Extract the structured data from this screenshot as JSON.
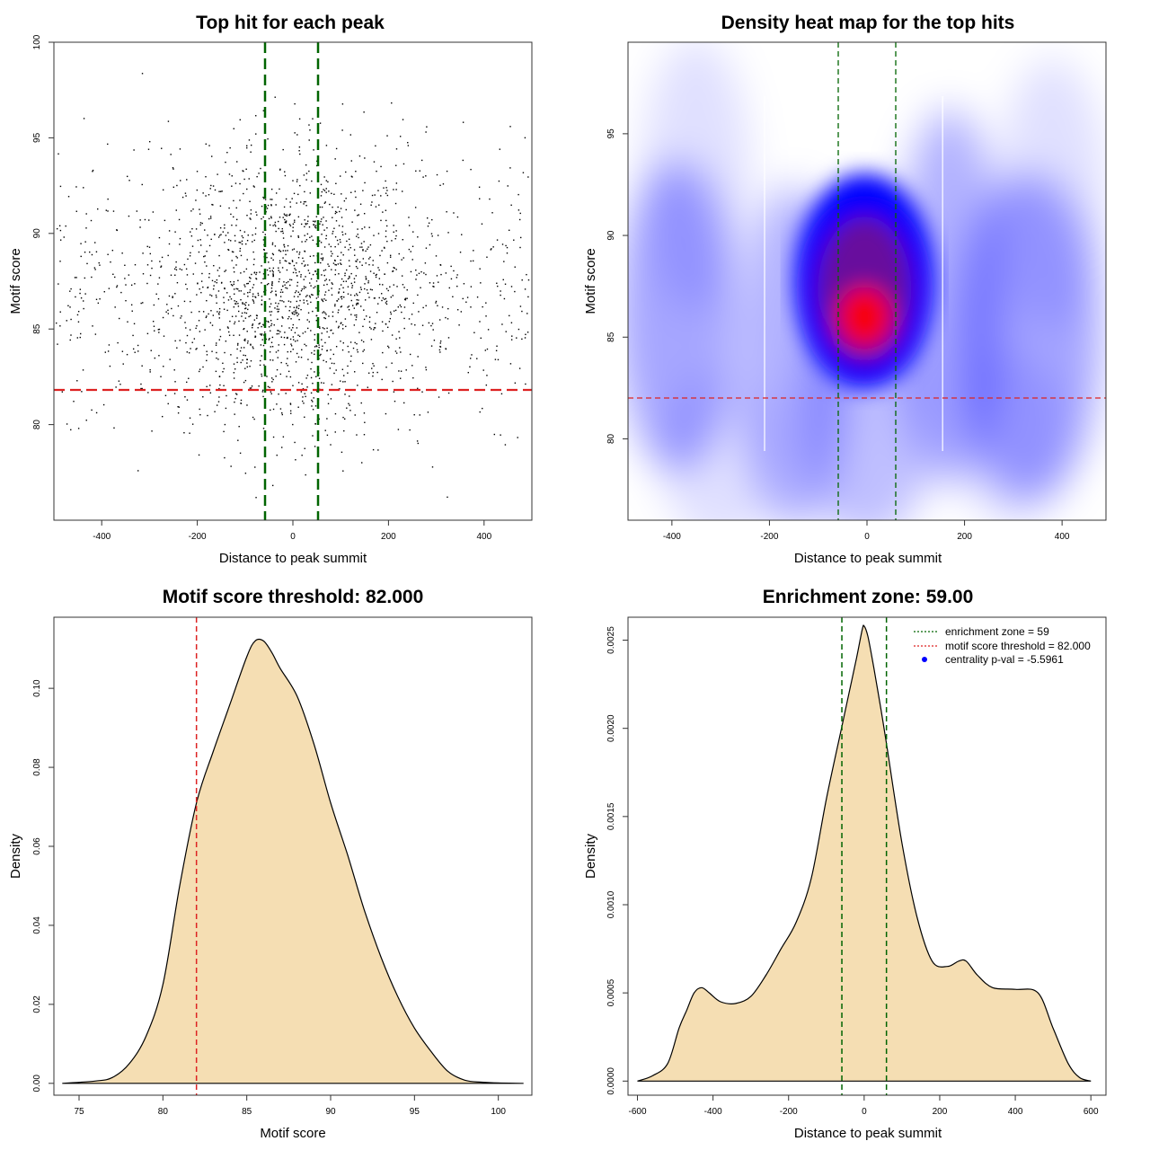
{
  "colors": {
    "scatter_point": "#000000",
    "green_line": "#006400",
    "red_line": "#dd2222",
    "density_fill": "#f5deb3",
    "heat_low": "#ffffff",
    "heat_mid": "#0000ff",
    "heat_high": "#ff0000",
    "centrality_point": "#0000ff"
  },
  "chart_data": [
    {
      "id": "scatter",
      "type": "scatter",
      "title": "Top hit for each peak",
      "xlabel": "Distance to peak summit",
      "ylabel": "Motif score",
      "xlim": [
        -500,
        500
      ],
      "ylim": [
        75,
        100
      ],
      "xticks": [
        -400,
        -200,
        0,
        200,
        400
      ],
      "xtick_labels": [
        "-400",
        "-200",
        "0",
        "200",
        "400"
      ],
      "yticks": [
        80,
        85,
        90,
        95,
        100
      ],
      "ytick_labels": [
        "80",
        "85",
        "90",
        "95",
        "100"
      ],
      "vlines": [
        -59,
        59
      ],
      "hline": 82,
      "n_points": 2000,
      "x_center_sd": 130,
      "y_center_mean": 87,
      "y_sd": 3.6,
      "x_range": [
        -495,
        495
      ],
      "y_range": [
        76,
        99.5
      ]
    },
    {
      "id": "heatmap",
      "type": "heatmap",
      "title": "Density heat map for the top hits",
      "xlabel": "Distance to peak summit",
      "ylabel": "Motif score",
      "xlim": [
        -490,
        490
      ],
      "ylim": [
        76,
        99.5
      ],
      "xticks": [
        -400,
        -200,
        0,
        200,
        400
      ],
      "xtick_labels": [
        "-400",
        "-200",
        "0",
        "200",
        "400"
      ],
      "yticks": [
        80,
        85,
        90,
        95
      ],
      "ytick_labels": [
        "80",
        "85",
        "90",
        "95"
      ],
      "vlines": [
        -59,
        59
      ],
      "hline": 82,
      "density_peak": {
        "x": -5,
        "y": 86
      },
      "white_bands": [
        -210,
        155
      ]
    },
    {
      "id": "score-density",
      "type": "area",
      "title": "Motif score threshold: 82.000",
      "xlabel": "Motif score",
      "ylabel": "Density",
      "xlim": [
        73.5,
        102
      ],
      "ylim": [
        -0.003,
        0.118
      ],
      "xticks": [
        75,
        80,
        85,
        90,
        95,
        100
      ],
      "xtick_labels": [
        "75",
        "80",
        "85",
        "90",
        "95",
        "100"
      ],
      "yticks": [
        0.0,
        0.02,
        0.04,
        0.06,
        0.08,
        0.1
      ],
      "ytick_labels": [
        "0.00",
        "0.02",
        "0.04",
        "0.06",
        "0.08",
        "0.10"
      ],
      "vline": 82,
      "x": [
        74,
        76,
        77,
        78,
        79,
        80,
        81,
        82,
        83,
        84,
        85,
        85.5,
        86,
        86.5,
        87,
        88,
        89,
        90,
        91,
        92,
        93,
        94,
        95,
        96,
        97,
        98,
        99,
        100,
        101.5
      ],
      "y": [
        0.0,
        0.0006,
        0.0015,
        0.005,
        0.012,
        0.025,
        0.05,
        0.071,
        0.084,
        0.096,
        0.108,
        0.112,
        0.112,
        0.109,
        0.105,
        0.098,
        0.086,
        0.071,
        0.058,
        0.044,
        0.032,
        0.022,
        0.014,
        0.008,
        0.003,
        0.0008,
        0.0003,
        0.0001,
        0.0
      ]
    },
    {
      "id": "distance-density",
      "type": "area",
      "title": "Enrichment zone: 59.00",
      "xlabel": "Distance to peak summit",
      "ylabel": "Density",
      "xlim": [
        -625,
        640
      ],
      "ylim": [
        -8e-05,
        0.00263
      ],
      "xticks": [
        -600,
        -400,
        -200,
        0,
        200,
        400,
        600
      ],
      "xtick_labels": [
        "-600",
        "-400",
        "-200",
        "0",
        "200",
        "400",
        "600"
      ],
      "yticks": [
        0.0,
        0.0005,
        0.001,
        0.0015,
        0.002,
        0.0025
      ],
      "ytick_labels": [
        "0.0000",
        "0.0005",
        "0.0010",
        "0.0015",
        "0.0020",
        "0.0025"
      ],
      "vlines": [
        -59,
        59
      ],
      "x": [
        -600,
        -560,
        -520,
        -490,
        -470,
        -450,
        -430,
        -410,
        -380,
        -340,
        -300,
        -260,
        -220,
        -180,
        -140,
        -100,
        -60,
        -40,
        -20,
        -5,
        0,
        10,
        25,
        45,
        60,
        100,
        140,
        180,
        220,
        250,
        270,
        300,
        340,
        400,
        460,
        500,
        540,
        570,
        600
      ],
      "y": [
        0.0,
        3e-05,
        0.0001,
        0.0003,
        0.0004,
        0.0005,
        0.00053,
        0.0005,
        0.00045,
        0.00044,
        0.00048,
        0.0006,
        0.00075,
        0.0009,
        0.00115,
        0.0016,
        0.002,
        0.0022,
        0.0024,
        0.00256,
        0.00258,
        0.00252,
        0.00235,
        0.0021,
        0.0019,
        0.00135,
        0.00093,
        0.00068,
        0.00065,
        0.00068,
        0.00068,
        0.0006,
        0.00053,
        0.00052,
        0.0005,
        0.0003,
        0.0001,
        2e-05,
        0.0
      ]
    }
  ],
  "legend": {
    "enrichment": "enrichment zone = 59",
    "threshold": "motif score threshold = 82.000",
    "centrality": "centrality p-val = -5.5961"
  }
}
